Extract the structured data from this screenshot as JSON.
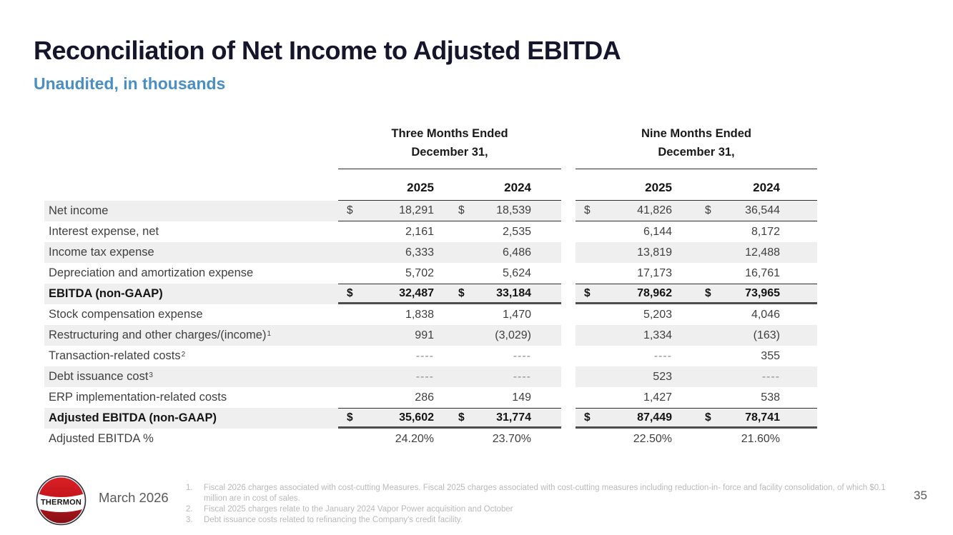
{
  "slide": {
    "title": "Reconciliation of Net Income to Adjusted EBITDA",
    "subtitle": "Unaudited, in thousands",
    "date": "March 2026",
    "page_number": "35",
    "logo_text": "THERMON",
    "accent_color": "#4a8ec2",
    "logo_red": "#c4161c"
  },
  "table": {
    "currency": "$",
    "empty_marker": "----",
    "groups": [
      {
        "title_line1": "Three Months Ended",
        "title_line2": "December 31,",
        "years": [
          "2025",
          "2024"
        ]
      },
      {
        "title_line1": "Nine Months Ended",
        "title_line2": "December 31,",
        "years": [
          "2025",
          "2024"
        ]
      }
    ],
    "rows": [
      {
        "label": "Net income",
        "sup": "",
        "bold": false,
        "shaded": true,
        "dollar": true,
        "rule_top": false,
        "rule_bottom": "thin",
        "values": [
          "18,291",
          "18,539",
          "41,826",
          "36,544"
        ]
      },
      {
        "label": "Interest expense, net",
        "sup": "",
        "bold": false,
        "shaded": false,
        "dollar": false,
        "rule_top": false,
        "rule_bottom": null,
        "values": [
          "2,161",
          "2,535",
          "6,144",
          "8,172"
        ]
      },
      {
        "label": "Income tax expense",
        "sup": "",
        "bold": false,
        "shaded": true,
        "dollar": false,
        "rule_top": false,
        "rule_bottom": null,
        "values": [
          "6,333",
          "6,486",
          "13,819",
          "12,488"
        ]
      },
      {
        "label": "Depreciation and amortization expense",
        "sup": "",
        "bold": false,
        "shaded": false,
        "dollar": false,
        "rule_top": false,
        "rule_bottom": null,
        "values": [
          "5,702",
          "5,624",
          "17,173",
          "16,761"
        ]
      },
      {
        "label": "EBITDA (non-GAAP)",
        "sup": "",
        "bold": true,
        "shaded": true,
        "dollar": true,
        "rule_top": true,
        "rule_bottom": "thick",
        "values": [
          "32,487",
          "33,184",
          "78,962",
          "73,965"
        ]
      },
      {
        "label": "Stock compensation expense",
        "sup": "",
        "bold": false,
        "shaded": false,
        "dollar": false,
        "rule_top": false,
        "rule_bottom": null,
        "values": [
          "1,838",
          "1,470",
          "5,203",
          "4,046"
        ]
      },
      {
        "label": "Restructuring and other charges/(income)",
        "sup": "1",
        "bold": false,
        "shaded": true,
        "dollar": false,
        "rule_top": false,
        "rule_bottom": null,
        "values": [
          "991",
          "(3,029)",
          "1,334",
          "(163)"
        ]
      },
      {
        "label": "Transaction-related costs",
        "sup": "2",
        "bold": false,
        "shaded": false,
        "dollar": false,
        "rule_top": false,
        "rule_bottom": null,
        "values": [
          "----",
          "----",
          "----",
          "355"
        ]
      },
      {
        "label": "Debt issuance cost",
        "sup": "3",
        "bold": false,
        "shaded": true,
        "dollar": false,
        "rule_top": false,
        "rule_bottom": null,
        "values": [
          "----",
          "----",
          "523",
          "----"
        ]
      },
      {
        "label": "ERP implementation-related costs",
        "sup": "",
        "bold": false,
        "shaded": false,
        "dollar": false,
        "rule_top": false,
        "rule_bottom": null,
        "values": [
          "286",
          "149",
          "1,427",
          "538"
        ]
      },
      {
        "label": "Adjusted EBITDA (non-GAAP)",
        "sup": "",
        "bold": true,
        "shaded": true,
        "dollar": true,
        "rule_top": true,
        "rule_bottom": "thick",
        "values": [
          "35,602",
          "31,774",
          "87,449",
          "78,741"
        ]
      },
      {
        "label": "Adjusted EBITDA %",
        "sup": "",
        "bold": false,
        "shaded": false,
        "dollar": false,
        "rule_top": false,
        "rule_bottom": null,
        "values": [
          "24.20%",
          "23.70%",
          "22.50%",
          "21.60%"
        ]
      }
    ]
  },
  "footnotes": [
    {
      "num": "1.",
      "text": "Fiscal 2026 charges associated with cost-cutting Measures. Fiscal 2025 charges associated with cost-cutting measures including reduction-in- force and facility consolidation, of which $0.1 million are in cost of sales."
    },
    {
      "num": "2.",
      "text": "Fiscal 2025 charges relate to the January 2024 Vapor Power acquisition and October"
    },
    {
      "num": "3.",
      "text": "Debt issuance costs related to refinancing the Company's credit facility."
    }
  ]
}
